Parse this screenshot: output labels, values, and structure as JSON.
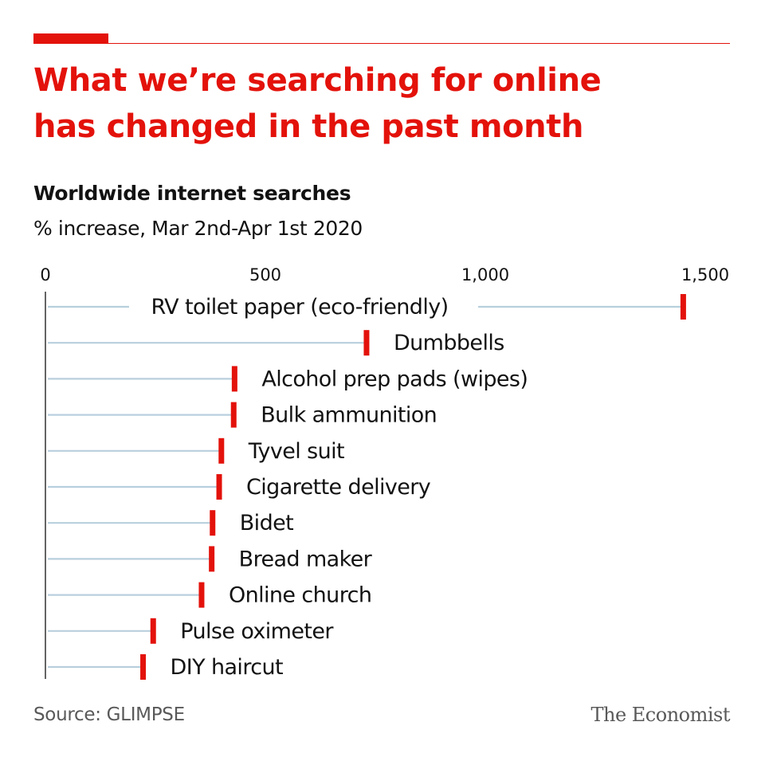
{
  "header": {
    "title": "What we’re searching for online has changed in the past month",
    "subtitle": "Worldwide internet searches",
    "units": "% increase, Mar 2nd-Apr 1st 2020"
  },
  "footer": {
    "source": "Source: GLIMPSE",
    "brand": "The Economist"
  },
  "colors": {
    "accent": "#e3120b",
    "stem": "#b8cfdd",
    "axis": "#121212",
    "text": "#121212",
    "muted": "#595959"
  },
  "chart_data": {
    "type": "bar",
    "orientation": "horizontal",
    "title": "Worldwide internet searches",
    "subtitle": "% increase, Mar 2nd-Apr 1st 2020",
    "xlim": [
      0,
      1500
    ],
    "x_ticks": [
      0,
      500,
      1000,
      1500
    ],
    "x_tick_labels": [
      "0",
      "500",
      "1,000",
      "1,500"
    ],
    "grid": false,
    "categories": [
      "RV toilet paper (eco-friendly)",
      "Dumbbells",
      "Alcohol prep pads (wipes)",
      "Bulk ammunition",
      "Tyvel suit",
      "Cigarette delivery",
      "Bidet",
      "Bread maker",
      "Online church",
      "Pulse oximeter",
      "DIY haircut"
    ],
    "values": [
      1450,
      730,
      430,
      428,
      400,
      395,
      380,
      378,
      355,
      245,
      222
    ]
  }
}
